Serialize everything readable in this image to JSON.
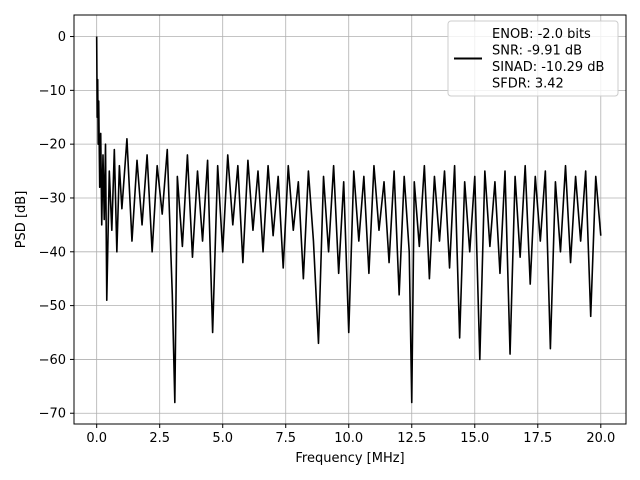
{
  "chart_data": {
    "type": "line",
    "title": "",
    "xlabel": "Frequency [MHz]",
    "ylabel": "PSD [dB]",
    "xlim": [
      -0.9,
      21.0
    ],
    "ylim": [
      -72,
      4
    ],
    "xticks": [
      0.0,
      2.5,
      5.0,
      7.5,
      10.0,
      12.5,
      15.0,
      17.5,
      20.0
    ],
    "xtick_labels": [
      "0.0",
      "2.5",
      "5.0",
      "7.5",
      "10.0",
      "12.5",
      "15.0",
      "17.5",
      "20.0"
    ],
    "yticks": [
      0,
      -10,
      -20,
      -30,
      -40,
      -50,
      -60,
      -70
    ],
    "ytick_labels": [
      "0",
      "−10",
      "−20",
      "−30",
      "−40",
      "−50",
      "−60",
      "−70"
    ],
    "grid": true,
    "legend_position": "top-right",
    "legend": [
      "ENOB: -2.0 bits",
      "SNR: -9.91 dB",
      "SINAD: -10.29 dB",
      "SFDR: 3.42"
    ],
    "line_color": "#000000",
    "series": [
      {
        "x": [
          0.0,
          0.02,
          0.04,
          0.06,
          0.08,
          0.12,
          0.16,
          0.2,
          0.25,
          0.3,
          0.35,
          0.4,
          0.5,
          0.6,
          0.7,
          0.8,
          0.9,
          1.0,
          1.2,
          1.4,
          1.6,
          1.8,
          2.0,
          2.2,
          2.4,
          2.6,
          2.8,
          3.0,
          3.1,
          3.2,
          3.4,
          3.6,
          3.8,
          4.0,
          4.2,
          4.4,
          4.6,
          4.8,
          5.0,
          5.2,
          5.4,
          5.6,
          5.8,
          6.0,
          6.2,
          6.4,
          6.6,
          6.8,
          7.0,
          7.2,
          7.4,
          7.6,
          7.8,
          8.0,
          8.2,
          8.4,
          8.6,
          8.8,
          9.0,
          9.2,
          9.4,
          9.6,
          9.8,
          10.0,
          10.2,
          10.4,
          10.6,
          10.8,
          11.0,
          11.2,
          11.4,
          11.6,
          11.8,
          12.0,
          12.2,
          12.4,
          12.5,
          12.6,
          12.8,
          13.0,
          13.2,
          13.4,
          13.6,
          13.8,
          14.0,
          14.2,
          14.4,
          14.6,
          14.8,
          15.0,
          15.2,
          15.4,
          15.6,
          15.8,
          16.0,
          16.2,
          16.4,
          16.6,
          16.8,
          17.0,
          17.2,
          17.4,
          17.6,
          17.8,
          18.0,
          18.2,
          18.4,
          18.6,
          18.8,
          19.0,
          19.2,
          19.4,
          19.6,
          19.8,
          20.0
        ],
        "y": [
          0.0,
          -15.0,
          -8.0,
          -20.0,
          -12.0,
          -28.0,
          -18.0,
          -35.0,
          -22.0,
          -34.0,
          -20.0,
          -49.0,
          -25.0,
          -36.0,
          -21.0,
          -40.0,
          -24.0,
          -32.0,
          -19.0,
          -38.0,
          -23.0,
          -35.0,
          -22.0,
          -40.0,
          -24.0,
          -33.0,
          -21.0,
          -48.0,
          -68.0,
          -26.0,
          -39.0,
          -22.0,
          -41.0,
          -25.0,
          -38.0,
          -23.0,
          -55.0,
          -24.0,
          -40.0,
          -22.0,
          -35.0,
          -24.0,
          -42.0,
          -23.0,
          -36.0,
          -25.0,
          -40.0,
          -24.0,
          -37.0,
          -26.0,
          -43.0,
          -24.0,
          -36.0,
          -27.0,
          -45.0,
          -25.0,
          -38.0,
          -57.0,
          -26.0,
          -40.0,
          -24.0,
          -44.0,
          -27.0,
          -55.0,
          -25.0,
          -38.0,
          -26.0,
          -44.0,
          -24.0,
          -36.0,
          -27.0,
          -42.0,
          -25.0,
          -48.0,
          -26.0,
          -40.0,
          -68.0,
          -27.0,
          -39.0,
          -24.0,
          -45.0,
          -26.0,
          -38.0,
          -25.0,
          -43.0,
          -24.0,
          -56.0,
          -27.0,
          -40.0,
          -26.0,
          -60.0,
          -25.0,
          -39.0,
          -27.0,
          -44.0,
          -25.0,
          -59.0,
          -26.0,
          -41.0,
          -24.0,
          -46.0,
          -26.0,
          -38.0,
          -25.0,
          -58.0,
          -27.0,
          -40.0,
          -24.0,
          -42.0,
          -26.0,
          -38.0,
          -25.0,
          -52.0,
          -26.0,
          -37.0
        ]
      }
    ]
  }
}
